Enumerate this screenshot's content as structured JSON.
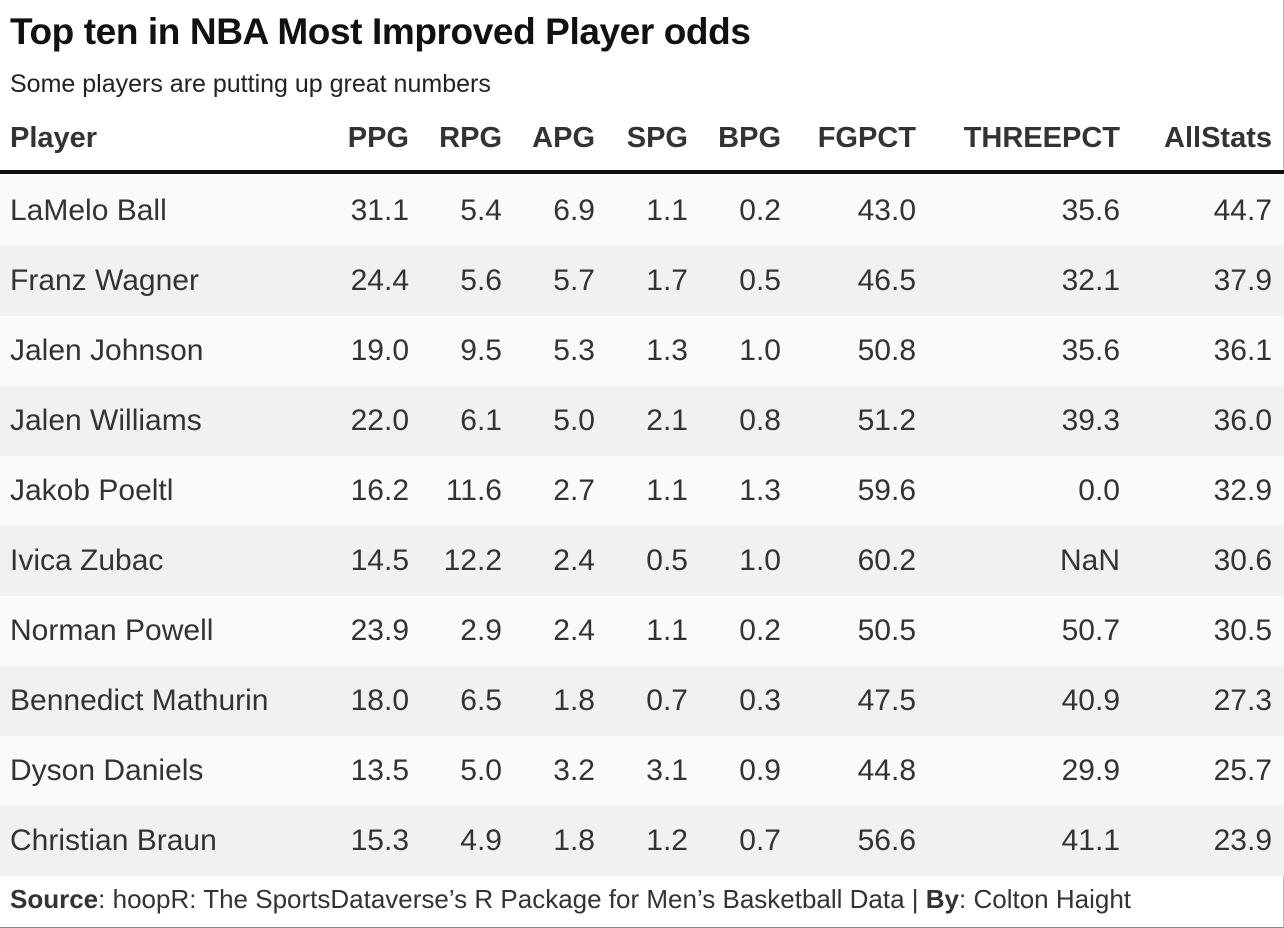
{
  "header": {
    "title": "Top ten in NBA Most Improved Player odds",
    "subtitle": "Some players are putting up great numbers"
  },
  "chart_data": {
    "type": "table",
    "title": "Top ten in NBA Most Improved Player odds",
    "subtitle": "Some players are putting up great numbers",
    "columns": [
      "Player",
      "PPG",
      "RPG",
      "APG",
      "SPG",
      "BPG",
      "FGPCT",
      "THREEPCT",
      "AllStats"
    ],
    "rows": [
      [
        "LaMelo Ball",
        "31.1",
        "5.4",
        "6.9",
        "1.1",
        "0.2",
        "43.0",
        "35.6",
        "44.7"
      ],
      [
        "Franz Wagner",
        "24.4",
        "5.6",
        "5.7",
        "1.7",
        "0.5",
        "46.5",
        "32.1",
        "37.9"
      ],
      [
        "Jalen Johnson",
        "19.0",
        "9.5",
        "5.3",
        "1.3",
        "1.0",
        "50.8",
        "35.6",
        "36.1"
      ],
      [
        "Jalen Williams",
        "22.0",
        "6.1",
        "5.0",
        "2.1",
        "0.8",
        "51.2",
        "39.3",
        "36.0"
      ],
      [
        "Jakob Poeltl",
        "16.2",
        "11.6",
        "2.7",
        "1.1",
        "1.3",
        "59.6",
        "0.0",
        "32.9"
      ],
      [
        "Ivica Zubac",
        "14.5",
        "12.2",
        "2.4",
        "0.5",
        "1.0",
        "60.2",
        "NaN",
        "30.6"
      ],
      [
        "Norman Powell",
        "23.9",
        "2.9",
        "2.4",
        "1.1",
        "0.2",
        "50.5",
        "50.7",
        "30.5"
      ],
      [
        "Bennedict Mathurin",
        "18.0",
        "6.5",
        "1.8",
        "0.7",
        "0.3",
        "47.5",
        "40.9",
        "27.3"
      ],
      [
        "Dyson Daniels",
        "13.5",
        "5.0",
        "3.2",
        "3.1",
        "0.9",
        "44.8",
        "29.9",
        "25.7"
      ],
      [
        "Christian Braun",
        "15.3",
        "4.9",
        "1.8",
        "1.2",
        "0.7",
        "56.6",
        "41.1",
        "23.9"
      ]
    ]
  },
  "footer": {
    "source_label": "Source",
    "source_text": ": hoopR: The SportsDataverse’s R Package for Men’s Basketball Data | ",
    "by_label": "By",
    "by_text": ": Colton Haight"
  }
}
